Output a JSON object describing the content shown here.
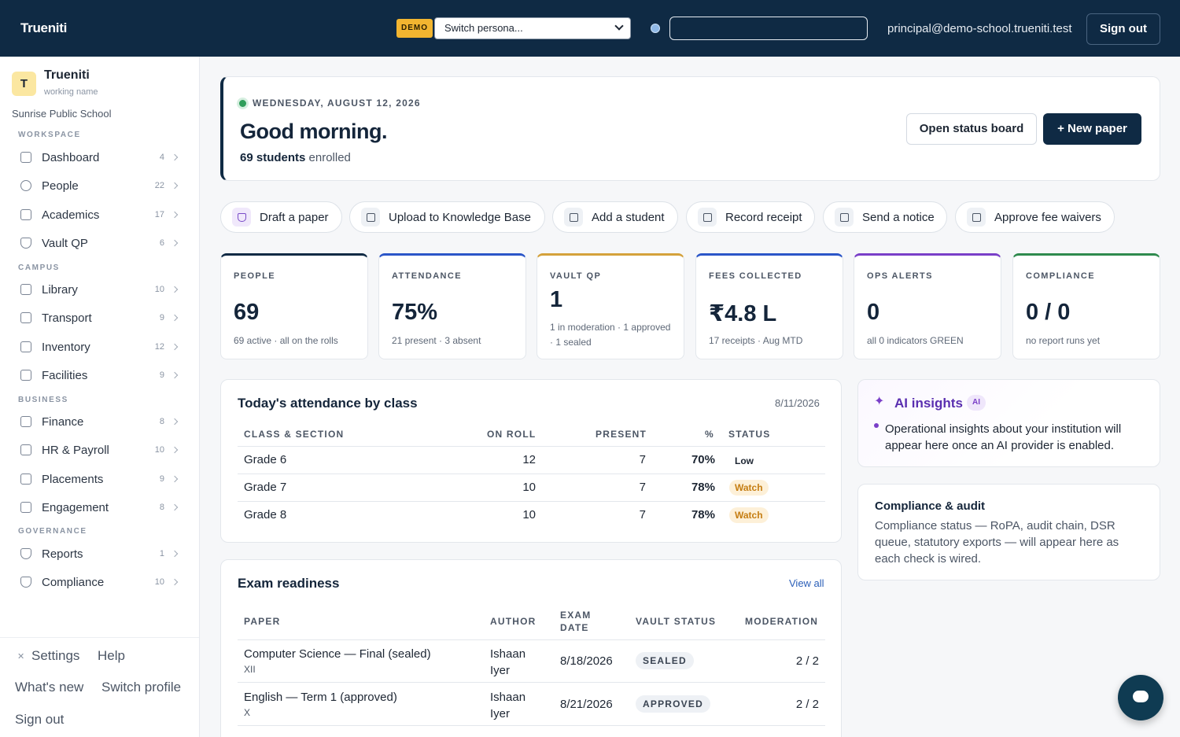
{
  "topbar": {
    "brand": "Trueniti",
    "demo_badge": "DEMO",
    "persona_select": "Switch persona...",
    "search_value": "",
    "user_email": "principal@demo-school.trueniti.test",
    "sign_out": "Sign out"
  },
  "sidebar": {
    "avatar_letter": "T",
    "org_name": "Trueniti",
    "org_sub": "working name",
    "school": "Sunrise Public School",
    "sections": [
      "WORKSPACE",
      "CAMPUS",
      "BUSINESS",
      "GOVERNANCE"
    ],
    "items": [
      {
        "label": "Dashboard",
        "count": "4"
      },
      {
        "label": "People",
        "count": "22"
      },
      {
        "label": "Academics",
        "count": "17"
      },
      {
        "label": "Vault QP",
        "count": "6"
      },
      {
        "label": "Library",
        "count": "10"
      },
      {
        "label": "Transport",
        "count": "9"
      },
      {
        "label": "Inventory",
        "count": "12"
      },
      {
        "label": "Facilities",
        "count": "9"
      },
      {
        "label": "Finance",
        "count": "8"
      },
      {
        "label": "HR & Payroll",
        "count": "10"
      },
      {
        "label": "Placements",
        "count": "9"
      },
      {
        "label": "Engagement",
        "count": "8"
      },
      {
        "label": "Reports",
        "count": "1"
      },
      {
        "label": "Compliance",
        "count": "10"
      }
    ],
    "footer": {
      "settings": "Settings",
      "help": "Help",
      "whats_new": "What's new",
      "switch_profile": "Switch profile",
      "sign_out": "Sign out"
    }
  },
  "hero": {
    "date": "WEDNESDAY, AUGUST 12, 2026",
    "greeting": "Good morning.",
    "students_count": "69 students",
    "students_suffix": " enrolled",
    "open_status": "Open status board",
    "new_paper": "+ New paper"
  },
  "quick_actions": [
    "Draft a paper",
    "Upload to Knowledge Base",
    "Add a student",
    "Record receipt",
    "Send a notice",
    "Approve fee waivers"
  ],
  "kpis": [
    {
      "label": "PEOPLE",
      "value": "69",
      "sub": "69 active · all on the rolls",
      "color": "#0f2a44"
    },
    {
      "label": "ATTENDANCE",
      "value": "75%",
      "sub": "21 present · 3 absent",
      "color": "#2b56c8"
    },
    {
      "label": "VAULT QP",
      "value": "1",
      "sub": "1 in moderation · 1 approved · 1 sealed",
      "color": "#d4a13b"
    },
    {
      "label": "FEES COLLECTED",
      "value": "₹4.8 L",
      "sub": "17 receipts · Aug MTD",
      "color": "#2b56c8"
    },
    {
      "label": "OPS ALERTS",
      "value": "0",
      "sub": "all 0 indicators GREEN",
      "color": "#7a3fc8"
    },
    {
      "label": "COMPLIANCE",
      "value": "0 / 0",
      "sub": "no report runs yet",
      "color": "#2f8a4e"
    }
  ],
  "attendance": {
    "title": "Today's attendance by class",
    "date": "8/11/2026",
    "headers": [
      "CLASS & SECTION",
      "ON ROLL",
      "PRESENT",
      "%",
      "STATUS"
    ],
    "rows": [
      {
        "cls": "Grade 6",
        "roll": "12",
        "present": "7",
        "pct": "70%",
        "status": "Low"
      },
      {
        "cls": "Grade 7",
        "roll": "10",
        "present": "7",
        "pct": "78%",
        "status": "Watch"
      },
      {
        "cls": "Grade 8",
        "roll": "10",
        "present": "7",
        "pct": "78%",
        "status": "Watch"
      }
    ]
  },
  "exams": {
    "title": "Exam readiness",
    "view_all": "View all",
    "headers": [
      "PAPER",
      "AUTHOR",
      "EXAM DATE",
      "VAULT STATUS",
      "MODERATION"
    ],
    "rows": [
      {
        "paper": "Computer Science — Final (sealed)",
        "cls": "XII",
        "author": "Ishaan Iyer",
        "date": "8/18/2026",
        "status": "SEALED",
        "mod": "2 / 2"
      },
      {
        "paper": "English — Term 1 (approved)",
        "cls": "X",
        "author": "Ishaan Iyer",
        "date": "8/21/2026",
        "status": "APPROVED",
        "mod": "2 / 2"
      }
    ]
  },
  "ai": {
    "title": "AI insights",
    "badge": "AI",
    "bullet": "Operational insights about your institution will appear here once an AI provider is enabled."
  },
  "compliance": {
    "title": "Compliance & audit",
    "body": "Compliance status — RoPA, audit chain, DSR queue, statutory exports — will appear here as each check is wired."
  }
}
